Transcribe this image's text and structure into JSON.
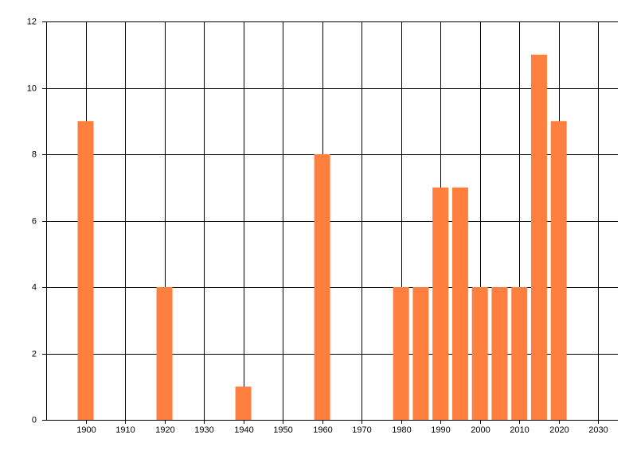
{
  "chart_data": {
    "type": "bar",
    "x": [
      1900,
      1920,
      1940,
      1960,
      1980,
      1985,
      1990,
      1995,
      2000,
      2005,
      2010,
      2015,
      2020
    ],
    "values": [
      9,
      4,
      1,
      8,
      4,
      4,
      7,
      7,
      4,
      4,
      4,
      11,
      9
    ],
    "color": "#ff7f3f",
    "xlim": [
      1890,
      2035
    ],
    "xticks": [
      1900,
      1910,
      1920,
      1930,
      1940,
      1950,
      1960,
      1970,
      1980,
      1990,
      2000,
      2010,
      2020,
      2030
    ],
    "ylim": [
      0,
      12
    ],
    "yticks": [
      0,
      2,
      4,
      6,
      8,
      10,
      12
    ],
    "grid": true
  }
}
